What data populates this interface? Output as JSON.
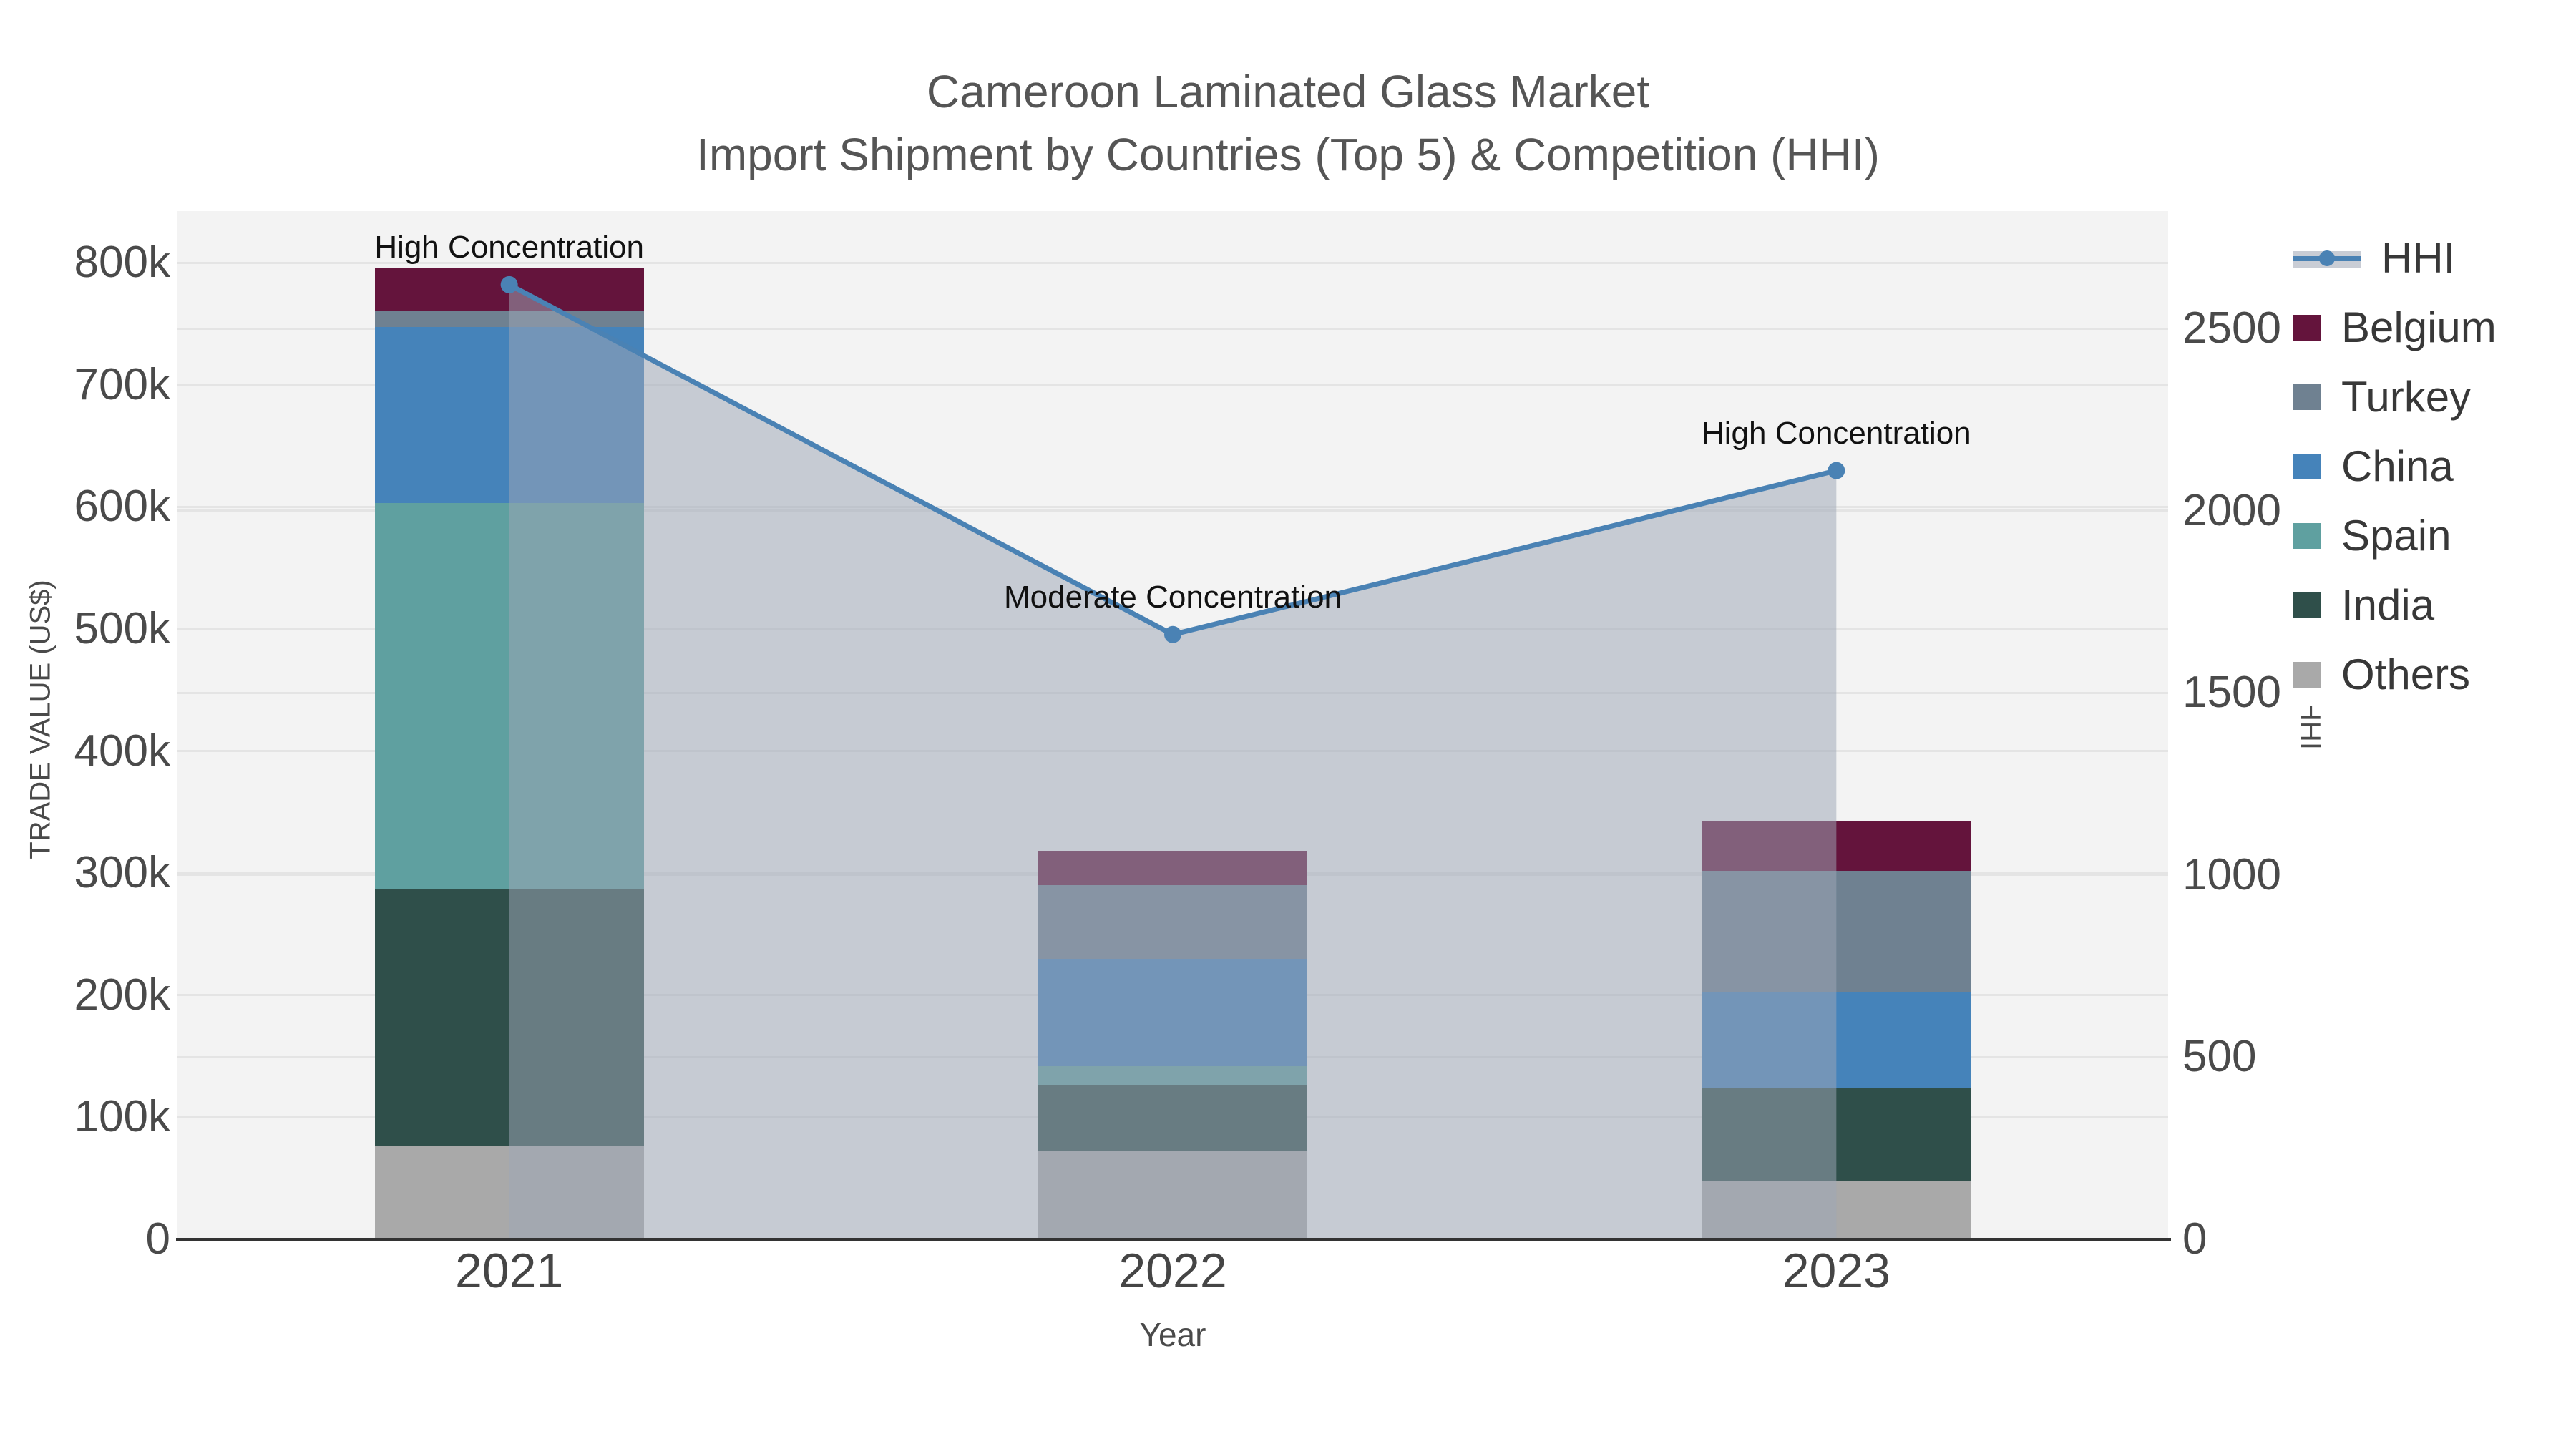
{
  "title": {
    "line1": "Cameroon Laminated Glass Market",
    "line2": "Import Shipment by Countries (Top 5) & Competition (HHI)"
  },
  "axes": {
    "x": {
      "title": "Year",
      "categories": [
        "2021",
        "2022",
        "2023"
      ]
    },
    "y_left": {
      "title": "TRADE VALUE (US$)",
      "tick_labels": [
        "0",
        "100k",
        "200k",
        "300k",
        "400k",
        "500k",
        "600k",
        "700k",
        "800k"
      ],
      "tick_values": [
        0,
        100000,
        200000,
        300000,
        400000,
        500000,
        600000,
        700000,
        800000
      ]
    },
    "y_right": {
      "title": "HHI",
      "tick_labels": [
        "0",
        "500",
        "1000",
        "1500",
        "2000",
        "2500"
      ],
      "tick_values": [
        0,
        500,
        1000,
        1500,
        2000,
        2500
      ]
    }
  },
  "legend": [
    {
      "label": "HHI",
      "swatch": "line",
      "color": "#4A82B4",
      "band_color": "#C9CDD5"
    },
    {
      "label": "Belgium",
      "swatch": "square",
      "color": "#64143C"
    },
    {
      "label": "Turkey",
      "swatch": "square",
      "color": "#6F8191"
    },
    {
      "label": "China",
      "swatch": "square",
      "color": "#4583BA"
    },
    {
      "label": "Spain",
      "swatch": "square",
      "color": "#5FA0A0"
    },
    {
      "label": "India",
      "swatch": "square",
      "color": "#2F4F4A"
    },
    {
      "label": "Others",
      "swatch": "square",
      "color": "#A9A9A9"
    }
  ],
  "chart_data": {
    "type": [
      "bar",
      "line"
    ],
    "title": "Cameroon Laminated Glass Market — Import Shipment by Countries (Top 5) & Competition (HHI)",
    "categories": [
      "2021",
      "2022",
      "2023"
    ],
    "xlabel": "Year",
    "ylabel_left": "TRADE VALUE (US$)",
    "ylabel_right": "HHI",
    "ylim_left": [
      0,
      842000
    ],
    "ylim_right": [
      0,
      2820
    ],
    "grid": true,
    "legend_position": "right",
    "bar_stack_order_bottom_to_top": [
      "Others",
      "India",
      "Spain",
      "China",
      "Turkey",
      "Belgium"
    ],
    "series": [
      {
        "name": "Others",
        "type": "bar",
        "color": "#A9A9A9",
        "values": [
          77000,
          72000,
          48000
        ]
      },
      {
        "name": "India",
        "type": "bar",
        "color": "#2F4F4A",
        "values": [
          210000,
          54000,
          76000
        ]
      },
      {
        "name": "Spain",
        "type": "bar",
        "color": "#5FA0A0",
        "values": [
          316000,
          16000,
          0
        ]
      },
      {
        "name": "China",
        "type": "bar",
        "color": "#4583BA",
        "values": [
          144000,
          88000,
          79000
        ]
      },
      {
        "name": "Turkey",
        "type": "bar",
        "color": "#6F8191",
        "values": [
          13000,
          60000,
          99000
        ]
      },
      {
        "name": "Belgium",
        "type": "bar",
        "color": "#64143C",
        "values": [
          36000,
          28000,
          40000
        ]
      }
    ],
    "bar_totals": [
      796000,
      318000,
      342000
    ],
    "hhi_line": {
      "name": "HHI",
      "type": "line",
      "axis": "right",
      "color": "#4A82B4",
      "area_fill": "rgba(158,166,183,0.52)",
      "values": [
        2620,
        1660,
        2110
      ]
    },
    "annotations": [
      {
        "text": "High Concentration",
        "category": "2021"
      },
      {
        "text": "Moderate Concentration",
        "category": "2022"
      },
      {
        "text": "High Concentration",
        "category": "2023"
      }
    ]
  }
}
